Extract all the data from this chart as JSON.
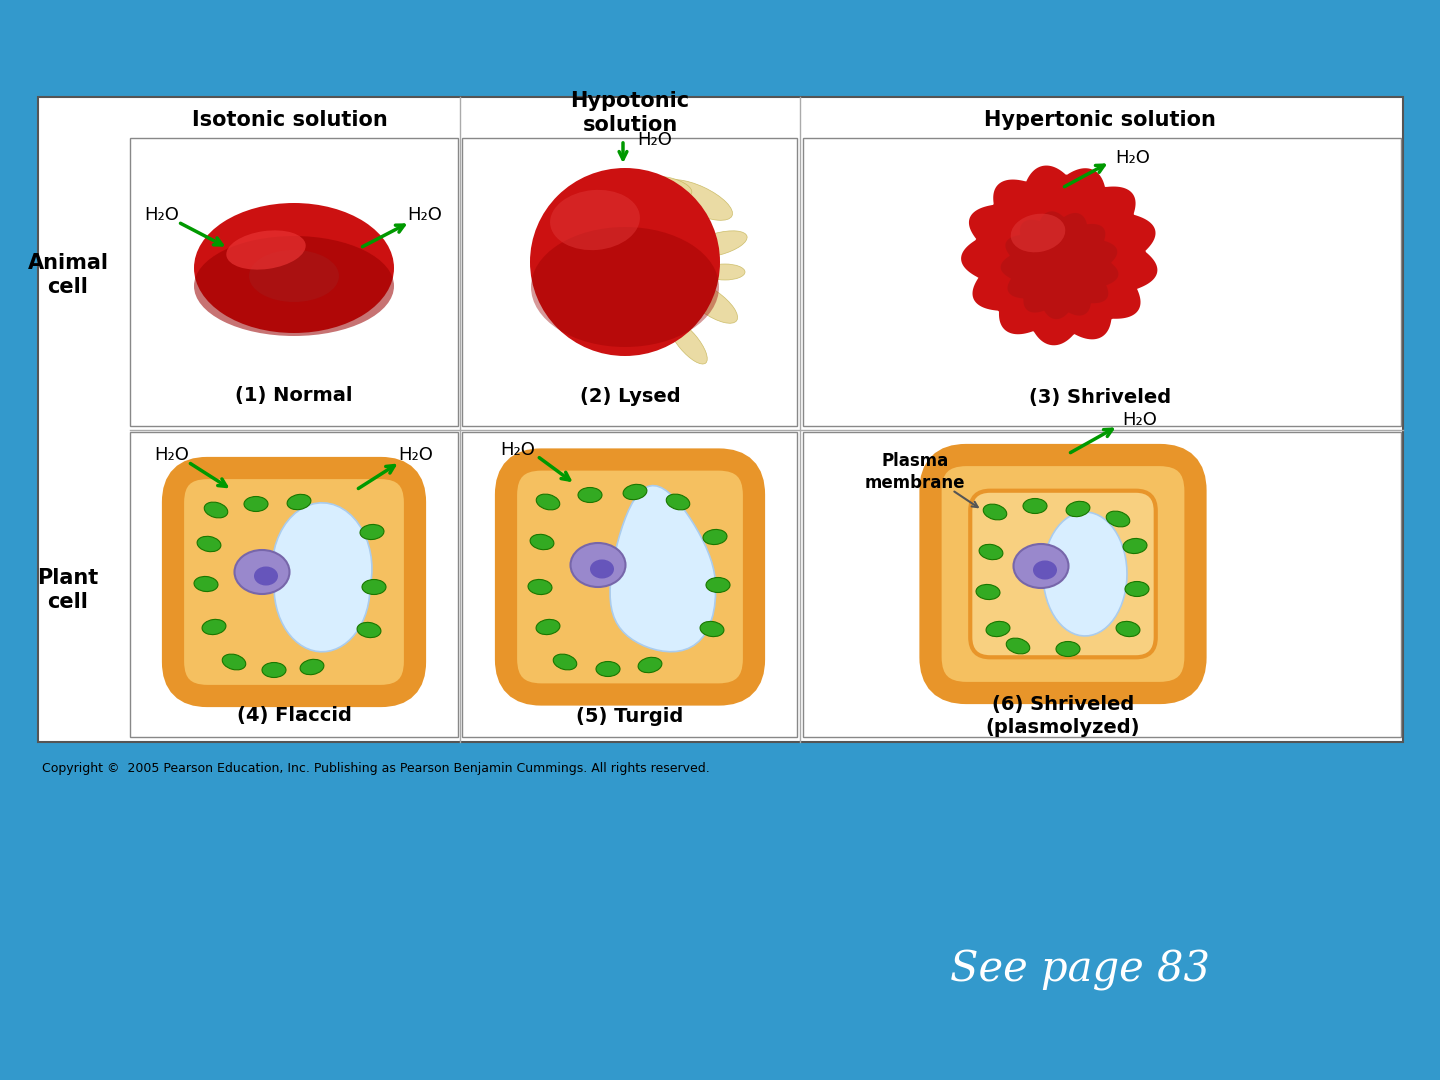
{
  "bg_color": "#3399cc",
  "white_panel_color": "#ffffff",
  "panel_border_color": "#555555",
  "title_col1": "Isotonic solution",
  "title_col2": "Hypotonic\nsolution",
  "title_col3": "Hypertonic solution",
  "label_animal": "Animal\ncell",
  "label_plant": "Plant\ncell",
  "label1": "(1) Normal",
  "label2": "(2) Lysed",
  "label3": "(3) Shriveled",
  "label4": "(4) Flaccid",
  "label5": "(5) Turgid",
  "label6": "(6) Shriveled\n(plasmolyzed)",
  "h2o_label": "H₂O",
  "plasma_membrane_label": "Plasma\nmembrane",
  "copyright": "Copyright ©  2005 Pearson Education, Inc. Publishing as Pearson Benjamin Cummings. All rights reserved.",
  "see_page": "See page 83",
  "red_cell_color": "#cc1111",
  "red_cell_mid": "#b80e0e",
  "red_cell_dark": "#990000",
  "red_cell_highlight": "#ee3333",
  "orange_wall_color": "#e8952a",
  "orange_fill_color": "#f5c060",
  "orange_inner_color": "#f8d080",
  "green_oval_color": "#33aa22",
  "nucleus_color": "#9988cc",
  "nucleus_dark": "#7766aa",
  "vacuole_color": "#d8eeff",
  "vacuole_edge": "#aaccee",
  "arrow_color": "#009900",
  "splash_color": "#e8d89a",
  "splash_edge": "#c8b860",
  "title_fontsize": 15,
  "label_fontsize": 14,
  "row_label_fontsize": 15,
  "h2o_fontsize": 13,
  "copyright_fontsize": 9,
  "see_page_fontsize": 30
}
